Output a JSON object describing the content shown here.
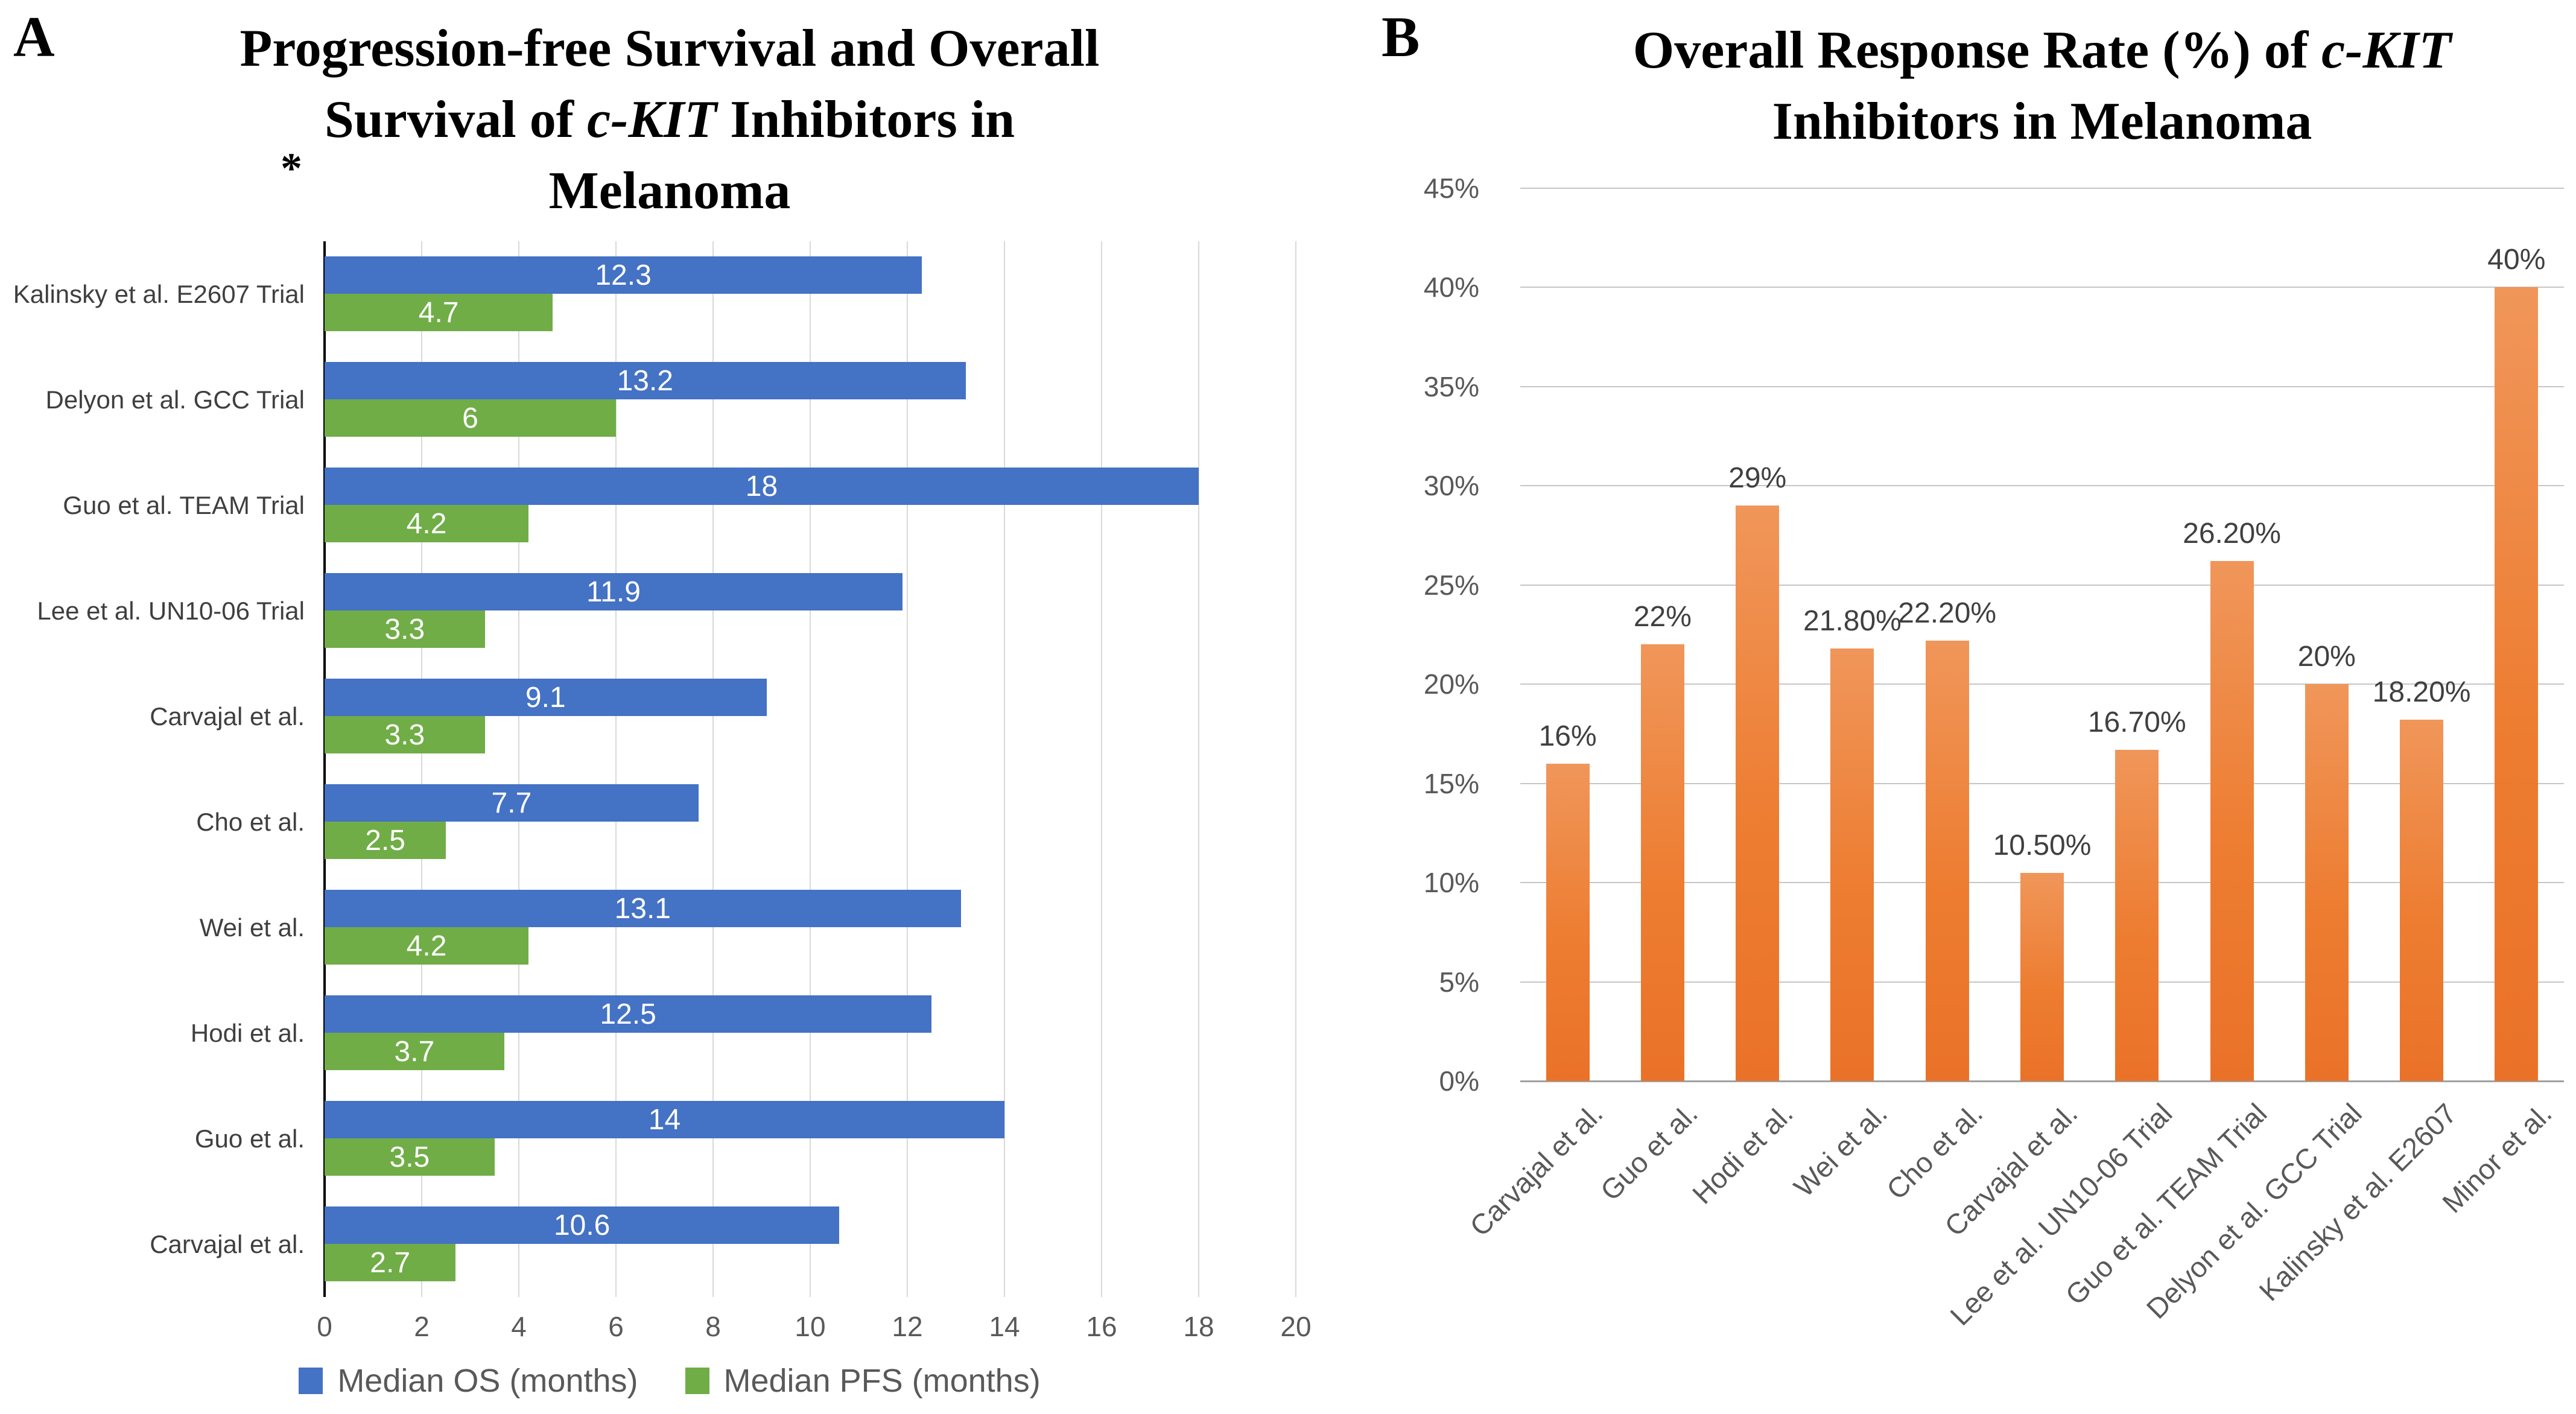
{
  "panels": {
    "a": {
      "label": "A",
      "title": {
        "line1": "Progression-free Survival and Overall",
        "line2_pre": "Survival of ",
        "line2_italic": "c-KIT",
        "line2_post": " Inhibitors in",
        "line3": "Melanoma"
      },
      "annotation_asterisk": "*"
    },
    "b": {
      "label": "B",
      "title": {
        "line1_pre": "Overall Response Rate (%) of ",
        "line1_italic": "c-KIT",
        "line2": "Inhibitors in Melanoma"
      }
    }
  },
  "chart_data": [
    {
      "id": "pfs-os-chart",
      "type": "bar",
      "orientation": "horizontal",
      "title": "Progression-free Survival and Overall Survival of c-KIT Inhibitors in Melanoma",
      "categories": [
        "Kalinsky et al. E2607 Trial",
        "Delyon et al. GCC Trial",
        "Guo et al. TEAM Trial",
        "Lee et al. UN10-06 Trial",
        "Carvajal et al.",
        "Cho et al.",
        "Wei et al.",
        "Hodi et al.",
        "Guo et al.",
        "Carvajal et al."
      ],
      "series": [
        {
          "name": "Median OS (months)",
          "color": "#4472C4",
          "values": [
            12.3,
            13.2,
            18,
            11.9,
            9.1,
            7.7,
            13.1,
            12.5,
            14,
            10.6
          ],
          "value_labels": [
            "12.3",
            "13.2",
            "18",
            "11.9",
            "9.1",
            "7.7",
            "13.1",
            "12.5",
            "14",
            "10.6"
          ]
        },
        {
          "name": "Median PFS (months)",
          "color": "#70AD47",
          "values": [
            4.7,
            6,
            4.2,
            3.3,
            3.3,
            2.5,
            4.2,
            3.7,
            3.5,
            2.7
          ],
          "value_labels": [
            "4.7",
            "6",
            "4.2",
            "3.3",
            "3.3",
            "2.5",
            "4.2",
            "3.7",
            "3.5",
            "2.7"
          ]
        }
      ],
      "xlim": [
        0,
        20
      ],
      "x_ticks": [
        "0",
        "2",
        "4",
        "6",
        "8",
        "10",
        "12",
        "14",
        "16",
        "18",
        "20"
      ],
      "grid": "vertical",
      "legend_position": "bottom"
    },
    {
      "id": "orr-chart",
      "type": "bar",
      "orientation": "vertical",
      "title": "Overall Response Rate (%) of c-KIT Inhibitors in Melanoma",
      "categories": [
        "Carvajal et al.",
        "Guo et al.",
        "Hodi et al.",
        "Wei et al.",
        "Cho et al.",
        "Carvajal et al.",
        "Lee et al. UN10-06 Trial",
        "Guo et al. TEAM Trial",
        "Delyon et al. GCC Trial",
        "Kalinsky et al. E2607",
        "Minor et al."
      ],
      "values": [
        16,
        22,
        29,
        21.8,
        22.2,
        10.5,
        16.7,
        26.2,
        20,
        18.2,
        40
      ],
      "value_labels": [
        "16%",
        "22%",
        "29%",
        "21.80%",
        "22.20%",
        "10.50%",
        "16.70%",
        "26.20%",
        "20%",
        "18.20%",
        "40%"
      ],
      "ylim": [
        0,
        45
      ],
      "y_ticks": [
        "45%",
        "40%",
        "35%",
        "30%",
        "25%",
        "20%",
        "15%",
        "10%",
        "5%",
        "0%"
      ],
      "y_tick_values": [
        45,
        40,
        35,
        30,
        25,
        20,
        15,
        10,
        5,
        0
      ],
      "bar_color": "#ED7D31",
      "grid": "horizontal",
      "legend_position": "none"
    }
  ],
  "colors": {
    "os_blue": "#4472C4",
    "pfs_green": "#70AD47",
    "orr_orange": "#ED7D31",
    "grid_light": "#D9D9D9",
    "grid_medium": "#C6C6C6",
    "axis_text": "#595959",
    "category_text": "#3F3F3F",
    "value_text_dark": "#404040",
    "axis_line": "#000000"
  }
}
